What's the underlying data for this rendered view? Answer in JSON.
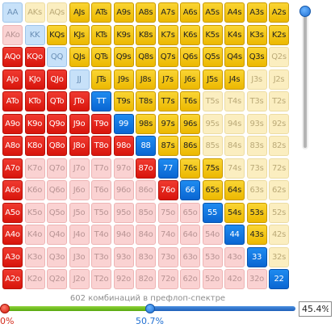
{
  "range_grid": {
    "rows": [
      [
        [
          "AA",
          "lightblue"
        ],
        [
          "AKs",
          "pale"
        ],
        [
          "AQs",
          "pale"
        ],
        [
          "AJs",
          "yellow"
        ],
        [
          "ATs",
          "yellow"
        ],
        [
          "A9s",
          "yellow"
        ],
        [
          "A8s",
          "yellow"
        ],
        [
          "A7s",
          "yellow"
        ],
        [
          "A6s",
          "yellow"
        ],
        [
          "A5s",
          "yellow"
        ],
        [
          "A4s",
          "yellow"
        ],
        [
          "A3s",
          "yellow"
        ],
        [
          "A2s",
          "yellow"
        ]
      ],
      [
        [
          "AKo",
          "pink"
        ],
        [
          "KK",
          "lightblue"
        ],
        [
          "KQs",
          "yellow"
        ],
        [
          "KJs",
          "yellow"
        ],
        [
          "KTs",
          "yellow"
        ],
        [
          "K9s",
          "yellow"
        ],
        [
          "K8s",
          "yellow"
        ],
        [
          "K7s",
          "yellow"
        ],
        [
          "K6s",
          "yellow"
        ],
        [
          "K5s",
          "yellow"
        ],
        [
          "K4s",
          "yellow"
        ],
        [
          "K3s",
          "yellow"
        ],
        [
          "K2s",
          "yellow"
        ]
      ],
      [
        [
          "AQo",
          "red"
        ],
        [
          "KQo",
          "red"
        ],
        [
          "QQ",
          "lightblue"
        ],
        [
          "QJs",
          "yellow"
        ],
        [
          "QTs",
          "yellow"
        ],
        [
          "Q9s",
          "yellow"
        ],
        [
          "Q8s",
          "yellow"
        ],
        [
          "Q7s",
          "yellow"
        ],
        [
          "Q6s",
          "yellow"
        ],
        [
          "Q5s",
          "yellow"
        ],
        [
          "Q4s",
          "yellow"
        ],
        [
          "Q3s",
          "yellow"
        ],
        [
          "Q2s",
          "pale"
        ]
      ],
      [
        [
          "AJo",
          "red"
        ],
        [
          "KJo",
          "red"
        ],
        [
          "QJo",
          "red"
        ],
        [
          "JJ",
          "lightblue"
        ],
        [
          "JTs",
          "yellow"
        ],
        [
          "J9s",
          "yellow"
        ],
        [
          "J8s",
          "yellow"
        ],
        [
          "J7s",
          "yellow"
        ],
        [
          "J6s",
          "yellow"
        ],
        [
          "J5s",
          "yellow"
        ],
        [
          "J4s",
          "yellow"
        ],
        [
          "J3s",
          "pale"
        ],
        [
          "J2s",
          "pale"
        ]
      ],
      [
        [
          "ATo",
          "red"
        ],
        [
          "KTo",
          "red"
        ],
        [
          "QTo",
          "red"
        ],
        [
          "JTo",
          "red"
        ],
        [
          "TT",
          "blue"
        ],
        [
          "T9s",
          "yellow"
        ],
        [
          "T8s",
          "yellow"
        ],
        [
          "T7s",
          "yellow"
        ],
        [
          "T6s",
          "yellow"
        ],
        [
          "T5s",
          "pale"
        ],
        [
          "T4s",
          "pale"
        ],
        [
          "T3s",
          "pale"
        ],
        [
          "T2s",
          "pale"
        ]
      ],
      [
        [
          "A9o",
          "red"
        ],
        [
          "K9o",
          "red"
        ],
        [
          "Q9o",
          "red"
        ],
        [
          "J9o",
          "red"
        ],
        [
          "T9o",
          "red"
        ],
        [
          "99",
          "blue"
        ],
        [
          "98s",
          "yellow"
        ],
        [
          "97s",
          "yellow"
        ],
        [
          "96s",
          "yellow"
        ],
        [
          "95s",
          "pale"
        ],
        [
          "94s",
          "pale"
        ],
        [
          "93s",
          "pale"
        ],
        [
          "92s",
          "pale"
        ]
      ],
      [
        [
          "A8o",
          "red"
        ],
        [
          "K8o",
          "red"
        ],
        [
          "Q8o",
          "red"
        ],
        [
          "J8o",
          "red"
        ],
        [
          "T8o",
          "red"
        ],
        [
          "98o",
          "red"
        ],
        [
          "88",
          "blue"
        ],
        [
          "87s",
          "yellow"
        ],
        [
          "86s",
          "yellow"
        ],
        [
          "85s",
          "pale"
        ],
        [
          "84s",
          "pale"
        ],
        [
          "83s",
          "pale"
        ],
        [
          "82s",
          "pale"
        ]
      ],
      [
        [
          "A7o",
          "red"
        ],
        [
          "K7o",
          "pink"
        ],
        [
          "Q7o",
          "pink"
        ],
        [
          "J7o",
          "pink"
        ],
        [
          "T7o",
          "pink"
        ],
        [
          "97o",
          "pink"
        ],
        [
          "87o",
          "red"
        ],
        [
          "77",
          "blue"
        ],
        [
          "76s",
          "yellow"
        ],
        [
          "75s",
          "yellow"
        ],
        [
          "74s",
          "pale"
        ],
        [
          "73s",
          "pale"
        ],
        [
          "72s",
          "pale"
        ]
      ],
      [
        [
          "A6o",
          "red"
        ],
        [
          "K6o",
          "pink"
        ],
        [
          "Q6o",
          "pink"
        ],
        [
          "J6o",
          "pink"
        ],
        [
          "T6o",
          "pink"
        ],
        [
          "96o",
          "pink"
        ],
        [
          "86o",
          "pink"
        ],
        [
          "76o",
          "red"
        ],
        [
          "66",
          "blue"
        ],
        [
          "65s",
          "yellow"
        ],
        [
          "64s",
          "yellow"
        ],
        [
          "63s",
          "pale"
        ],
        [
          "62s",
          "pale"
        ]
      ],
      [
        [
          "A5o",
          "red"
        ],
        [
          "K5o",
          "pink"
        ],
        [
          "Q5o",
          "pink"
        ],
        [
          "J5o",
          "pink"
        ],
        [
          "T5o",
          "pink"
        ],
        [
          "95o",
          "pink"
        ],
        [
          "85o",
          "pink"
        ],
        [
          "75o",
          "pink"
        ],
        [
          "65o",
          "pink"
        ],
        [
          "55",
          "blue"
        ],
        [
          "54s",
          "yellow"
        ],
        [
          "53s",
          "yellow"
        ],
        [
          "52s",
          "pale"
        ]
      ],
      [
        [
          "A4o",
          "red"
        ],
        [
          "K4o",
          "pink"
        ],
        [
          "Q4o",
          "pink"
        ],
        [
          "J4o",
          "pink"
        ],
        [
          "T4o",
          "pink"
        ],
        [
          "94o",
          "pink"
        ],
        [
          "84o",
          "pink"
        ],
        [
          "74o",
          "pink"
        ],
        [
          "64o",
          "pink"
        ],
        [
          "54o",
          "pink"
        ],
        [
          "44",
          "blue"
        ],
        [
          "43s",
          "yellow"
        ],
        [
          "42s",
          "pale"
        ]
      ],
      [
        [
          "A3o",
          "red"
        ],
        [
          "K3o",
          "pink"
        ],
        [
          "Q3o",
          "pink"
        ],
        [
          "J3o",
          "pink"
        ],
        [
          "T3o",
          "pink"
        ],
        [
          "93o",
          "pink"
        ],
        [
          "83o",
          "pink"
        ],
        [
          "73o",
          "pink"
        ],
        [
          "63o",
          "pink"
        ],
        [
          "53o",
          "pink"
        ],
        [
          "43o",
          "pink"
        ],
        [
          "33",
          "blue"
        ],
        [
          "32s",
          "pale"
        ]
      ],
      [
        [
          "A2o",
          "red"
        ],
        [
          "K2o",
          "pink"
        ],
        [
          "Q2o",
          "pink"
        ],
        [
          "J2o",
          "pink"
        ],
        [
          "T2o",
          "pink"
        ],
        [
          "92o",
          "pink"
        ],
        [
          "82o",
          "pink"
        ],
        [
          "72o",
          "pink"
        ],
        [
          "62o",
          "pink"
        ],
        [
          "52o",
          "pink"
        ],
        [
          "42o",
          "pink"
        ],
        [
          "32o",
          "pink"
        ],
        [
          "22",
          "blue"
        ]
      ]
    ]
  },
  "slider": {
    "caption": "602 комбинаций в префлоп-спектре",
    "min_label": "0%",
    "mid_label": "50.7%",
    "mid_value_percent": 50.7,
    "input_value": "45.4%"
  },
  "colors": {
    "red": "#e0201a",
    "yellow": "#f2c200",
    "blue": "#0f6fd8",
    "lightblue": "#c7e1f9",
    "pale": "#fbeec0",
    "pink": "#fad2d2"
  }
}
